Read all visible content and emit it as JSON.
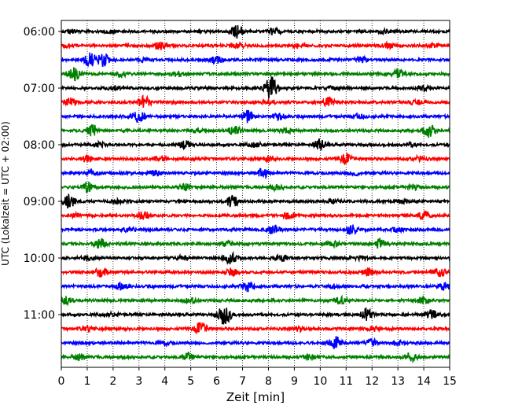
{
  "chart_data": {
    "type": "line",
    "subtype": "helicorder",
    "xlabel": "Zeit  [min]",
    "ylabel": "UTC (Lokalzeit = UTC + 02:00)",
    "xlim": [
      0,
      15
    ],
    "x_ticks": [
      "0",
      "1",
      "2",
      "3",
      "4",
      "5",
      "6",
      "7",
      "8",
      "9",
      "10",
      "11",
      "12",
      "13",
      "14",
      "15"
    ],
    "y_tick_labels": [
      {
        "row": 0,
        "label": "06:00"
      },
      {
        "row": 4,
        "label": "07:00"
      },
      {
        "row": 8,
        "label": "08:00"
      },
      {
        "row": 12,
        "label": "09:00"
      },
      {
        "row": 16,
        "label": "10:00"
      },
      {
        "row": 20,
        "label": "11:00"
      }
    ],
    "grid": "vertical-dotted",
    "trace_colors": [
      "#000000",
      "#ff0000",
      "#0000ff",
      "#008000"
    ],
    "row_duration_min": 15,
    "rows": [
      {
        "start": "06:00",
        "bursts": [
          {
            "t": 0.4,
            "a": 0.25
          },
          {
            "t": 1.9,
            "a": 0.2
          },
          {
            "t": 6.8,
            "a": 0.9
          },
          {
            "t": 8.2,
            "a": 0.4
          },
          {
            "t": 12.5,
            "a": 0.2
          }
        ]
      },
      {
        "start": "06:15",
        "bursts": [
          {
            "t": 0.2,
            "a": 0.2
          },
          {
            "t": 3.8,
            "a": 0.5
          },
          {
            "t": 6.9,
            "a": 0.3
          },
          {
            "t": 9.2,
            "a": 0.3
          },
          {
            "t": 12.6,
            "a": 0.3
          },
          {
            "t": 14.4,
            "a": 0.3
          }
        ]
      },
      {
        "start": "06:30",
        "bursts": [
          {
            "t": 1.1,
            "a": 0.9
          },
          {
            "t": 1.6,
            "a": 1.0
          },
          {
            "t": 3.1,
            "a": 0.3
          },
          {
            "t": 6.0,
            "a": 0.5
          },
          {
            "t": 11.6,
            "a": 0.4
          }
        ]
      },
      {
        "start": "06:45",
        "bursts": [
          {
            "t": 0.5,
            "a": 0.8
          },
          {
            "t": 2.3,
            "a": 0.3
          },
          {
            "t": 4.5,
            "a": 0.3
          },
          {
            "t": 13.0,
            "a": 0.6
          }
        ]
      },
      {
        "start": "07:00",
        "bursts": [
          {
            "t": 2.0,
            "a": 0.2
          },
          {
            "t": 8.1,
            "a": 1.6
          },
          {
            "t": 10.5,
            "a": 0.2
          },
          {
            "t": 14.0,
            "a": 0.3
          }
        ]
      },
      {
        "start": "07:15",
        "bursts": [
          {
            "t": 0.4,
            "a": 0.6
          },
          {
            "t": 3.2,
            "a": 0.9
          },
          {
            "t": 8.0,
            "a": 0.3
          },
          {
            "t": 10.3,
            "a": 0.6
          },
          {
            "t": 13.7,
            "a": 0.3
          }
        ]
      },
      {
        "start": "07:30",
        "bursts": [
          {
            "t": 3.0,
            "a": 0.8
          },
          {
            "t": 7.2,
            "a": 0.8
          },
          {
            "t": 8.4,
            "a": 0.4
          },
          {
            "t": 11.5,
            "a": 0.3
          }
        ]
      },
      {
        "start": "07:45",
        "bursts": [
          {
            "t": 1.2,
            "a": 0.8
          },
          {
            "t": 5.2,
            "a": 0.3
          },
          {
            "t": 6.7,
            "a": 0.6
          },
          {
            "t": 8.7,
            "a": 0.3
          },
          {
            "t": 14.2,
            "a": 0.9
          }
        ]
      },
      {
        "start": "08:00",
        "bursts": [
          {
            "t": 1.5,
            "a": 0.3
          },
          {
            "t": 4.8,
            "a": 0.5
          },
          {
            "t": 7.5,
            "a": 0.3
          },
          {
            "t": 10.0,
            "a": 0.7
          },
          {
            "t": 13.5,
            "a": 0.2
          }
        ]
      },
      {
        "start": "08:15",
        "bursts": [
          {
            "t": 1.0,
            "a": 0.4
          },
          {
            "t": 3.8,
            "a": 0.3
          },
          {
            "t": 8.0,
            "a": 0.3
          },
          {
            "t": 11.0,
            "a": 0.6
          },
          {
            "t": 13.8,
            "a": 0.3
          }
        ]
      },
      {
        "start": "08:30",
        "bursts": [
          {
            "t": 1.2,
            "a": 0.3
          },
          {
            "t": 3.6,
            "a": 0.3
          },
          {
            "t": 7.8,
            "a": 0.6
          },
          {
            "t": 11.3,
            "a": 0.3
          }
        ]
      },
      {
        "start": "08:45",
        "bursts": [
          {
            "t": 1.0,
            "a": 0.7
          },
          {
            "t": 4.8,
            "a": 0.4
          },
          {
            "t": 8.3,
            "a": 0.3
          },
          {
            "t": 13.6,
            "a": 0.3
          }
        ]
      },
      {
        "start": "09:00",
        "bursts": [
          {
            "t": 0.3,
            "a": 0.9
          },
          {
            "t": 2.2,
            "a": 0.2
          },
          {
            "t": 6.6,
            "a": 0.8
          },
          {
            "t": 10.5,
            "a": 0.3
          },
          {
            "t": 13.2,
            "a": 0.2
          }
        ]
      },
      {
        "start": "09:15",
        "bursts": [
          {
            "t": 0.5,
            "a": 0.3
          },
          {
            "t": 3.2,
            "a": 0.5
          },
          {
            "t": 8.8,
            "a": 0.4
          },
          {
            "t": 14.0,
            "a": 0.5
          }
        ]
      },
      {
        "start": "09:30",
        "bursts": [
          {
            "t": 2.6,
            "a": 0.3
          },
          {
            "t": 8.2,
            "a": 0.6
          },
          {
            "t": 11.2,
            "a": 0.6
          },
          {
            "t": 13.0,
            "a": 0.3
          }
        ]
      },
      {
        "start": "09:45",
        "bursts": [
          {
            "t": 1.5,
            "a": 0.7
          },
          {
            "t": 6.4,
            "a": 0.3
          },
          {
            "t": 10.5,
            "a": 0.3
          },
          {
            "t": 12.3,
            "a": 0.6
          }
        ]
      },
      {
        "start": "10:00",
        "bursts": [
          {
            "t": 1.0,
            "a": 0.3
          },
          {
            "t": 4.6,
            "a": 0.3
          },
          {
            "t": 6.5,
            "a": 0.8
          },
          {
            "t": 8.5,
            "a": 0.5
          },
          {
            "t": 11.5,
            "a": 0.3
          }
        ]
      },
      {
        "start": "10:15",
        "bursts": [
          {
            "t": 1.5,
            "a": 0.6
          },
          {
            "t": 6.6,
            "a": 0.5
          },
          {
            "t": 11.9,
            "a": 0.5
          },
          {
            "t": 14.6,
            "a": 0.7
          }
        ]
      },
      {
        "start": "10:30",
        "bursts": [
          {
            "t": 2.3,
            "a": 0.5
          },
          {
            "t": 7.2,
            "a": 0.6
          },
          {
            "t": 10.6,
            "a": 0.3
          },
          {
            "t": 14.8,
            "a": 0.5
          }
        ]
      },
      {
        "start": "10:45",
        "bursts": [
          {
            "t": 0.2,
            "a": 0.5
          },
          {
            "t": 5.0,
            "a": 0.3
          },
          {
            "t": 10.8,
            "a": 0.5
          },
          {
            "t": 14.0,
            "a": 0.4
          }
        ]
      },
      {
        "start": "11:00",
        "bursts": [
          {
            "t": 2.0,
            "a": 0.2
          },
          {
            "t": 6.3,
            "a": 1.6
          },
          {
            "t": 11.8,
            "a": 0.7
          },
          {
            "t": 14.3,
            "a": 0.6
          }
        ]
      },
      {
        "start": "11:15",
        "bursts": [
          {
            "t": 1.0,
            "a": 0.2
          },
          {
            "t": 5.4,
            "a": 0.8
          },
          {
            "t": 9.2,
            "a": 0.3
          },
          {
            "t": 12.1,
            "a": 0.3
          }
        ]
      },
      {
        "start": "11:30",
        "bursts": [
          {
            "t": 4.0,
            "a": 0.2
          },
          {
            "t": 10.6,
            "a": 0.8
          },
          {
            "t": 12.0,
            "a": 0.5
          },
          {
            "t": 13.0,
            "a": 0.3
          }
        ]
      },
      {
        "start": "11:45",
        "bursts": [
          {
            "t": 0.7,
            "a": 0.4
          },
          {
            "t": 4.9,
            "a": 0.5
          },
          {
            "t": 9.6,
            "a": 0.3
          },
          {
            "t": 13.5,
            "a": 0.6
          }
        ]
      }
    ]
  }
}
